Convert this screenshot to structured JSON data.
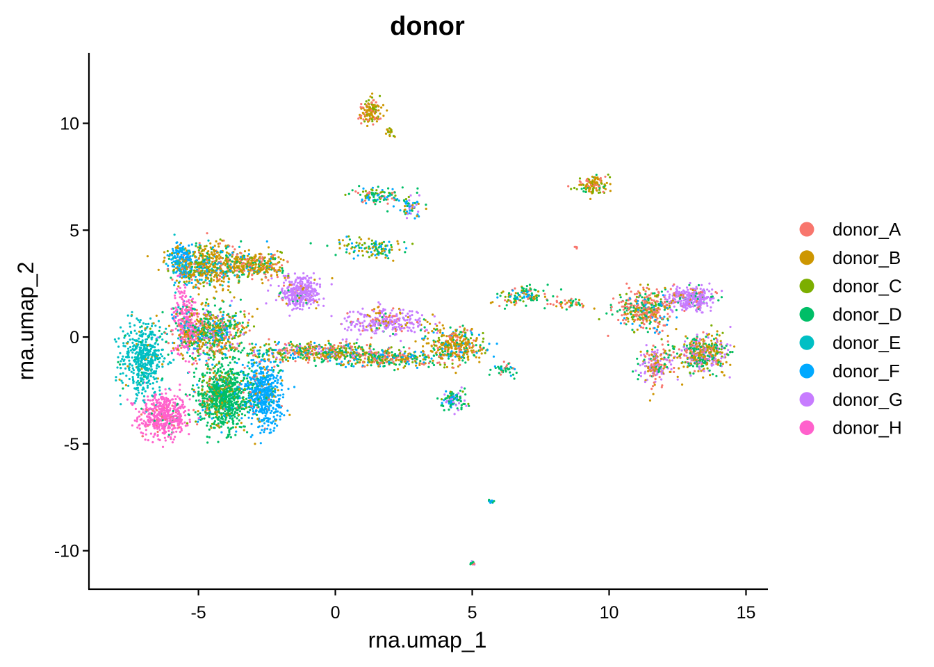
{
  "chart_data": {
    "type": "scatter",
    "title": "donor",
    "xlabel": "rna.umap_1",
    "ylabel": "rna.umap_2",
    "xlim": [
      -9,
      15.8
    ],
    "ylim": [
      -11.8,
      13.3
    ],
    "xticks": [
      -5,
      0,
      5,
      10,
      15
    ],
    "yticks": [
      -10,
      -5,
      0,
      5,
      10
    ],
    "xtick_labels": [
      "-5",
      "0",
      "5",
      "10",
      "15"
    ],
    "ytick_labels": [
      "-10",
      "-5",
      "0",
      "5",
      "10"
    ],
    "grid": false,
    "legend_position": "right",
    "series": [
      {
        "name": "donor_A",
        "color": "#F8766D"
      },
      {
        "name": "donor_B",
        "color": "#CD9600"
      },
      {
        "name": "donor_C",
        "color": "#7CAE00"
      },
      {
        "name": "donor_D",
        "color": "#00BE67"
      },
      {
        "name": "donor_E",
        "color": "#00BFC4"
      },
      {
        "name": "donor_F",
        "color": "#00A9FF"
      },
      {
        "name": "donor_G",
        "color": "#C77CFF"
      },
      {
        "name": "donor_H",
        "color": "#FF61CC"
      }
    ],
    "clusters": [
      {
        "center": [
          -6.3,
          -3.7
        ],
        "spread": [
          0.6,
          0.7
        ],
        "count": 500,
        "mix": {
          "donor_H": 0.9,
          "donor_A": 0.05,
          "donor_D": 0.05
        }
      },
      {
        "center": [
          -7.0,
          -1.0
        ],
        "spread": [
          0.55,
          1.2
        ],
        "count": 500,
        "mix": {
          "donor_E": 0.9,
          "donor_D": 0.05,
          "donor_B": 0.05
        }
      },
      {
        "center": [
          -5.5,
          0.8
        ],
        "spread": [
          0.3,
          1.1
        ],
        "count": 250,
        "mix": {
          "donor_H": 0.85,
          "donor_E": 0.1,
          "donor_A": 0.05
        }
      },
      {
        "center": [
          -4.1,
          -2.8
        ],
        "spread": [
          0.65,
          0.95
        ],
        "count": 900,
        "mix": {
          "donor_D": 0.75,
          "donor_C": 0.08,
          "donor_B": 0.07,
          "donor_F": 0.05,
          "donor_A": 0.05
        }
      },
      {
        "center": [
          -2.6,
          -2.6
        ],
        "spread": [
          0.45,
          1.0
        ],
        "count": 550,
        "mix": {
          "donor_F": 0.85,
          "donor_D": 0.06,
          "donor_B": 0.05,
          "donor_A": 0.04
        }
      },
      {
        "center": [
          -4.6,
          0.2
        ],
        "spread": [
          0.9,
          0.8
        ],
        "count": 700,
        "mix": {
          "donor_D": 0.3,
          "donor_B": 0.25,
          "donor_A": 0.15,
          "donor_F": 0.1,
          "donor_C": 0.1,
          "donor_G": 0.1
        }
      },
      {
        "center": [
          -4.8,
          3.3
        ],
        "spread": [
          0.8,
          0.7
        ],
        "count": 500,
        "mix": {
          "donor_B": 0.45,
          "donor_F": 0.15,
          "donor_A": 0.12,
          "donor_E": 0.1,
          "donor_D": 0.1,
          "donor_C": 0.08
        }
      },
      {
        "center": [
          -3.0,
          3.4
        ],
        "spread": [
          0.8,
          0.45
        ],
        "count": 350,
        "mix": {
          "donor_B": 0.55,
          "donor_A": 0.15,
          "donor_D": 0.1,
          "donor_C": 0.1,
          "donor_F": 0.1
        }
      },
      {
        "center": [
          -5.6,
          3.6
        ],
        "spread": [
          0.3,
          0.5
        ],
        "count": 150,
        "mix": {
          "donor_F": 0.7,
          "donor_E": 0.2,
          "donor_B": 0.1
        }
      },
      {
        "center": [
          -1.3,
          2.1
        ],
        "spread": [
          0.5,
          0.45
        ],
        "count": 350,
        "mix": {
          "donor_G": 0.85,
          "donor_A": 0.05,
          "donor_B": 0.05,
          "donor_D": 0.05
        }
      },
      {
        "center": [
          -0.6,
          -0.7
        ],
        "spread": [
          1.8,
          0.3
        ],
        "count": 500,
        "mix": {
          "donor_D": 0.25,
          "donor_A": 0.2,
          "donor_B": 0.2,
          "donor_C": 0.15,
          "donor_F": 0.1,
          "donor_G": 0.1
        }
      },
      {
        "center": [
          1.8,
          0.7
        ],
        "spread": [
          1.0,
          0.4
        ],
        "count": 300,
        "mix": {
          "donor_G": 0.75,
          "donor_B": 0.1,
          "donor_A": 0.1,
          "donor_D": 0.05
        }
      },
      {
        "center": [
          2.0,
          -1.0
        ],
        "spread": [
          1.3,
          0.25
        ],
        "count": 300,
        "mix": {
          "donor_D": 0.25,
          "donor_A": 0.25,
          "donor_B": 0.2,
          "donor_C": 0.15,
          "donor_F": 0.15
        }
      },
      {
        "center": [
          4.4,
          -0.4
        ],
        "spread": [
          0.7,
          0.55
        ],
        "count": 350,
        "mix": {
          "donor_B": 0.45,
          "donor_A": 0.2,
          "donor_D": 0.15,
          "donor_C": 0.1,
          "donor_F": 0.1
        }
      },
      {
        "center": [
          4.3,
          -2.9
        ],
        "spread": [
          0.3,
          0.3
        ],
        "count": 100,
        "mix": {
          "donor_D": 0.5,
          "donor_F": 0.2,
          "donor_G": 0.2,
          "donor_C": 0.1
        }
      },
      {
        "center": [
          6.2,
          -1.5
        ],
        "spread": [
          0.3,
          0.2
        ],
        "count": 40,
        "mix": {
          "donor_D": 0.5,
          "donor_A": 0.25,
          "donor_F": 0.25
        }
      },
      {
        "center": [
          1.3,
          10.6
        ],
        "spread": [
          0.3,
          0.35
        ],
        "count": 120,
        "mix": {
          "donor_B": 0.55,
          "donor_A": 0.3,
          "donor_C": 0.15
        }
      },
      {
        "center": [
          2.0,
          9.6
        ],
        "spread": [
          0.12,
          0.2
        ],
        "count": 20,
        "mix": {
          "donor_B": 0.5,
          "donor_C": 0.5
        }
      },
      {
        "center": [
          1.5,
          6.6
        ],
        "spread": [
          0.6,
          0.25
        ],
        "count": 100,
        "mix": {
          "donor_D": 0.3,
          "donor_F": 0.3,
          "donor_C": 0.2,
          "donor_A": 0.2
        }
      },
      {
        "center": [
          2.8,
          6.1
        ],
        "spread": [
          0.3,
          0.4
        ],
        "count": 60,
        "mix": {
          "donor_F": 0.3,
          "donor_D": 0.3,
          "donor_B": 0.2,
          "donor_G": 0.2
        }
      },
      {
        "center": [
          1.3,
          4.2
        ],
        "spread": [
          0.8,
          0.3
        ],
        "count": 120,
        "mix": {
          "donor_D": 0.35,
          "donor_B": 0.25,
          "donor_C": 0.2,
          "donor_F": 0.2
        }
      },
      {
        "center": [
          9.4,
          7.1
        ],
        "spread": [
          0.35,
          0.3
        ],
        "count": 120,
        "mix": {
          "donor_B": 0.55,
          "donor_A": 0.2,
          "donor_C": 0.15,
          "donor_D": 0.1
        }
      },
      {
        "center": [
          6.9,
          1.9
        ],
        "spread": [
          0.6,
          0.3
        ],
        "count": 120,
        "mix": {
          "donor_D": 0.3,
          "donor_A": 0.2,
          "donor_B": 0.2,
          "donor_F": 0.15,
          "donor_C": 0.15
        }
      },
      {
        "center": [
          8.5,
          1.6
        ],
        "spread": [
          0.5,
          0.2
        ],
        "count": 40,
        "mix": {
          "donor_A": 0.4,
          "donor_B": 0.3,
          "donor_D": 0.3
        }
      },
      {
        "center": [
          11.3,
          1.3
        ],
        "spread": [
          0.7,
          0.6
        ],
        "count": 400,
        "mix": {
          "donor_A": 0.45,
          "donor_D": 0.2,
          "donor_B": 0.15,
          "donor_C": 0.1,
          "donor_F": 0.1
        }
      },
      {
        "center": [
          13.0,
          1.8
        ],
        "spread": [
          0.55,
          0.35
        ],
        "count": 300,
        "mix": {
          "donor_G": 0.75,
          "donor_D": 0.1,
          "donor_A": 0.1,
          "donor_B": 0.05
        }
      },
      {
        "center": [
          13.4,
          -0.8
        ],
        "spread": [
          0.65,
          0.55
        ],
        "count": 450,
        "mix": {
          "donor_B": 0.3,
          "donor_D": 0.25,
          "donor_G": 0.2,
          "donor_A": 0.15,
          "donor_C": 0.1
        }
      },
      {
        "center": [
          11.7,
          -1.3
        ],
        "spread": [
          0.4,
          0.6
        ],
        "count": 200,
        "mix": {
          "donor_G": 0.35,
          "donor_D": 0.25,
          "donor_A": 0.2,
          "donor_B": 0.2
        }
      },
      {
        "center": [
          5.7,
          -7.7
        ],
        "spread": [
          0.08,
          0.06
        ],
        "count": 12,
        "mix": {
          "donor_D": 0.5,
          "donor_F": 0.5
        }
      },
      {
        "center": [
          5.0,
          -10.6
        ],
        "spread": [
          0.06,
          0.08
        ],
        "count": 14,
        "mix": {
          "donor_D": 0.4,
          "donor_A": 0.3,
          "donor_G": 0.3
        }
      },
      {
        "center": [
          8.8,
          4.2
        ],
        "spread": [
          0.04,
          0.06
        ],
        "count": 4,
        "mix": {
          "donor_A": 1.0
        }
      }
    ]
  }
}
